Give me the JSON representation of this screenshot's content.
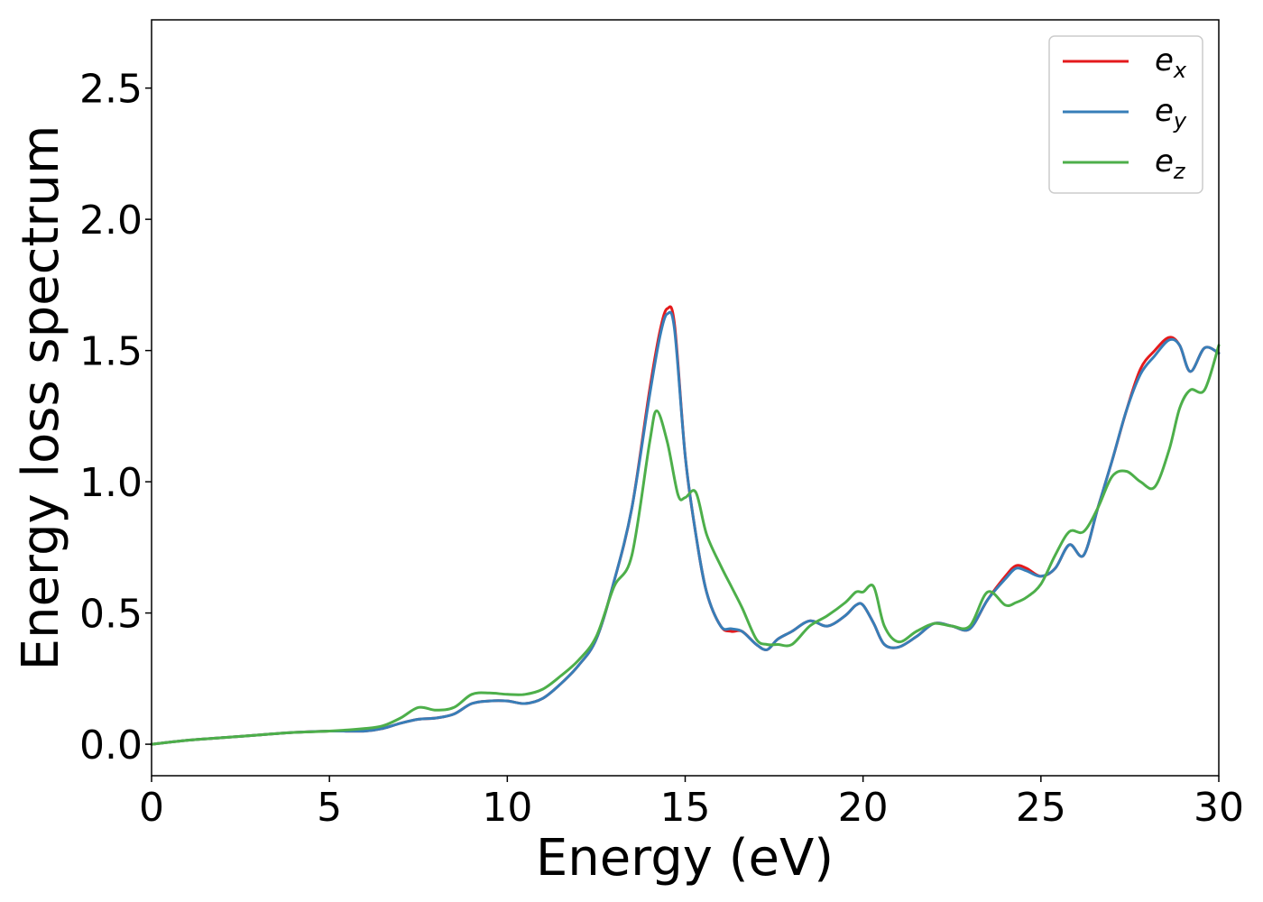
{
  "chart_data": {
    "type": "line",
    "xlabel": "Energy (eV)",
    "ylabel": "Energy loss spectrum",
    "xlim": [
      0,
      30
    ],
    "ylim": [
      -0.12,
      2.76
    ],
    "xticks": [
      0,
      5,
      10,
      15,
      20,
      25,
      30
    ],
    "xtick_labels": [
      "0",
      "5",
      "10",
      "15",
      "20",
      "25",
      "30"
    ],
    "yticks": [
      0.0,
      0.5,
      1.0,
      1.5,
      2.0,
      2.5
    ],
    "ytick_labels": [
      "0.0",
      "0.5",
      "1.0",
      "1.5",
      "2.0",
      "2.5"
    ],
    "grid": false,
    "legend_position": "top-right",
    "series": [
      {
        "name": "e_x",
        "label_base": "e",
        "label_sub": "x",
        "color": "#e41a1c",
        "x": [
          0,
          1,
          2,
          3,
          4,
          5,
          6,
          6.5,
          7,
          7.5,
          8,
          8.5,
          9,
          9.5,
          10,
          10.5,
          11,
          11.5,
          12,
          12.5,
          13,
          13.5,
          14,
          14.3,
          14.5,
          14.7,
          15,
          15.3,
          15.6,
          16,
          16.3,
          16.6,
          17,
          17.3,
          17.6,
          18,
          18.5,
          19,
          19.5,
          19.8,
          20,
          20.3,
          20.6,
          21,
          21.5,
          22,
          22.5,
          23,
          23.5,
          24,
          24.3,
          24.6,
          25,
          25.4,
          25.8,
          26.2,
          26.6,
          27,
          27.4,
          27.8,
          28.2,
          28.6,
          28.9,
          29.2,
          29.6,
          30
        ],
        "y": [
          0.0,
          0.015,
          0.025,
          0.035,
          0.045,
          0.05,
          0.05,
          0.06,
          0.08,
          0.095,
          0.1,
          0.115,
          0.155,
          0.165,
          0.165,
          0.155,
          0.175,
          0.23,
          0.3,
          0.4,
          0.62,
          0.9,
          1.35,
          1.58,
          1.66,
          1.6,
          1.1,
          0.8,
          0.58,
          0.45,
          0.43,
          0.43,
          0.38,
          0.36,
          0.4,
          0.43,
          0.47,
          0.45,
          0.49,
          0.53,
          0.53,
          0.46,
          0.38,
          0.37,
          0.41,
          0.46,
          0.45,
          0.44,
          0.55,
          0.64,
          0.68,
          0.67,
          0.64,
          0.67,
          0.76,
          0.72,
          0.9,
          1.08,
          1.27,
          1.43,
          1.5,
          1.55,
          1.52,
          1.42,
          1.51,
          1.49
        ]
      },
      {
        "name": "e_y",
        "label_base": "e",
        "label_sub": "y",
        "color": "#377eb8",
        "x": [
          0,
          1,
          2,
          3,
          4,
          5,
          6,
          6.5,
          7,
          7.5,
          8,
          8.5,
          9,
          9.5,
          10,
          10.5,
          11,
          11.5,
          12,
          12.5,
          13,
          13.5,
          14,
          14.3,
          14.5,
          14.7,
          15,
          15.3,
          15.6,
          16,
          16.3,
          16.6,
          17,
          17.3,
          17.6,
          18,
          18.5,
          19,
          19.5,
          19.8,
          20,
          20.3,
          20.6,
          21,
          21.5,
          22,
          22.5,
          23,
          23.5,
          24,
          24.3,
          24.6,
          25,
          25.4,
          25.8,
          26.2,
          26.6,
          27,
          27.4,
          27.8,
          28.2,
          28.6,
          28.9,
          29.2,
          29.6,
          30
        ],
        "y": [
          0.0,
          0.015,
          0.025,
          0.035,
          0.045,
          0.05,
          0.05,
          0.06,
          0.08,
          0.095,
          0.1,
          0.115,
          0.155,
          0.165,
          0.165,
          0.155,
          0.175,
          0.23,
          0.3,
          0.4,
          0.62,
          0.9,
          1.33,
          1.56,
          1.64,
          1.58,
          1.1,
          0.8,
          0.58,
          0.45,
          0.44,
          0.43,
          0.38,
          0.36,
          0.4,
          0.43,
          0.47,
          0.45,
          0.49,
          0.53,
          0.53,
          0.46,
          0.38,
          0.37,
          0.41,
          0.46,
          0.45,
          0.44,
          0.55,
          0.63,
          0.67,
          0.66,
          0.64,
          0.67,
          0.76,
          0.72,
          0.9,
          1.08,
          1.27,
          1.41,
          1.48,
          1.54,
          1.52,
          1.42,
          1.51,
          1.49
        ]
      },
      {
        "name": "e_z",
        "label_base": "e",
        "label_sub": "z",
        "color": "#4daf4a",
        "x": [
          0,
          1,
          2,
          3,
          4,
          5,
          6,
          6.5,
          7,
          7.5,
          8,
          8.5,
          9,
          9.5,
          10,
          10.5,
          11,
          11.5,
          12,
          12.5,
          13,
          13.5,
          14,
          14.2,
          14.5,
          14.8,
          15,
          15.3,
          15.6,
          16,
          16.3,
          16.6,
          17,
          17.3,
          17.6,
          18,
          18.5,
          19,
          19.5,
          19.8,
          20,
          20.3,
          20.6,
          21,
          21.5,
          22,
          22.5,
          23,
          23.5,
          24,
          24.3,
          24.6,
          25,
          25.4,
          25.8,
          26.2,
          26.6,
          27,
          27.4,
          27.8,
          28.2,
          28.6,
          28.9,
          29.2,
          29.6,
          30
        ],
        "y": [
          0.0,
          0.015,
          0.025,
          0.035,
          0.045,
          0.05,
          0.06,
          0.07,
          0.1,
          0.14,
          0.13,
          0.14,
          0.19,
          0.195,
          0.19,
          0.19,
          0.21,
          0.26,
          0.32,
          0.41,
          0.6,
          0.72,
          1.15,
          1.27,
          1.15,
          0.95,
          0.94,
          0.96,
          0.8,
          0.68,
          0.6,
          0.52,
          0.4,
          0.38,
          0.38,
          0.38,
          0.45,
          0.49,
          0.54,
          0.58,
          0.58,
          0.6,
          0.45,
          0.39,
          0.43,
          0.46,
          0.45,
          0.45,
          0.58,
          0.53,
          0.54,
          0.56,
          0.61,
          0.72,
          0.81,
          0.81,
          0.9,
          1.02,
          1.04,
          1.0,
          0.98,
          1.12,
          1.28,
          1.35,
          1.35,
          1.52
        ]
      }
    ]
  }
}
